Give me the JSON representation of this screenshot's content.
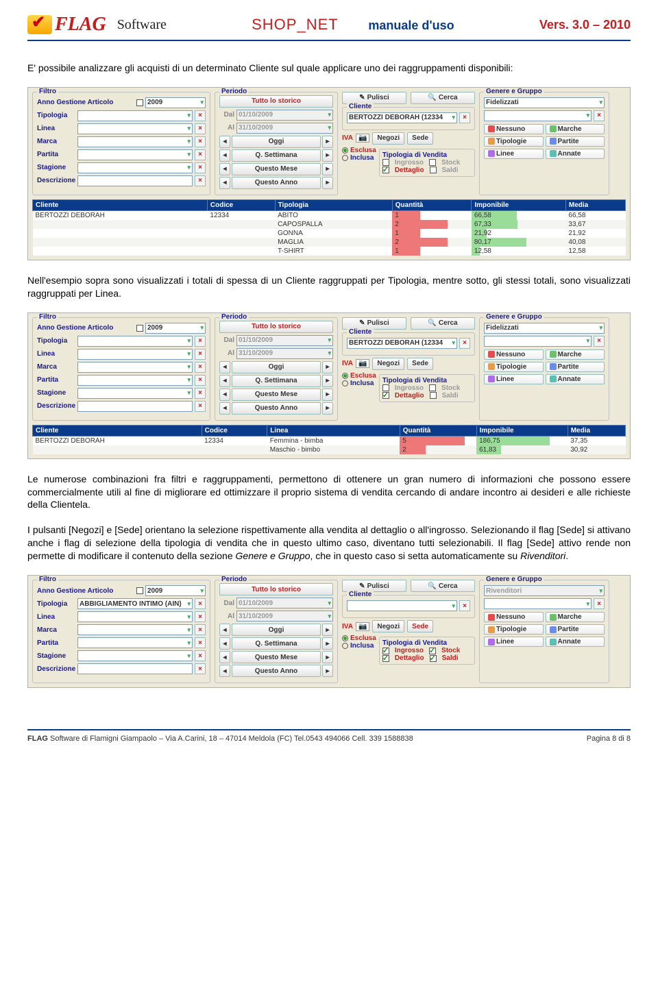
{
  "header": {
    "logo_text": "FLAG",
    "software": "Software",
    "shop_net": "SHOP_NET",
    "manual": "manuale d'uso",
    "version": "Vers. 3.0 – 2010"
  },
  "para1": "E' possibile analizzare gli acquisti di un determinato Cliente sul quale applicare uno dei raggruppamenti disponibili:",
  "para2": "Nell'esempio sopra sono visualizzati i totali di spessa di un Cliente raggruppati per Tipologia, mentre sotto, gli stessi totali,  sono visualizzati raggruppati per Linea.",
  "para3": "Le  numerose  combinazioni  fra  filtri  e  raggruppamenti,  permettono  di  ottenere  un  gran  numero  di informazioni  che  possono  essere  commercialmente  utili  al  fine  di  migliorare  ed  ottimizzare  il  proprio sistema di vendita cercando di andare incontro ai desideri e alle richieste della Clientela.",
  "para4a": "I pulsanti [Negozi] e [Sede] orientano la selezione rispettivamente alla vendita al dettaglio o all'ingrosso. Selezionando il flag [Sede] si attivano anche i flag di selezione della tipologia di vendita che in questo ultimo caso, diventano tutti selezionabili. Il flag [Sede] attivo rende non permette di modificare il contenuto della sezione ",
  "para4b": "Genere e Gruppo",
  "para4c": ", che in questo caso si setta automaticamente su ",
  "para4d": "Rivenditori",
  "para4e": ".",
  "filtro": {
    "title": "Filtro",
    "anno_label": "Anno Gestione Articolo",
    "anno_value": "2009",
    "labels": [
      "Tipologia",
      "Linea",
      "Marca",
      "Partita",
      "Stagione",
      "Descrizione"
    ]
  },
  "filtro_tipologia_val": "ABBIGLIAMENTO INTIMO  (AIN)",
  "periodo": {
    "title": "Periodo",
    "tutto": "Tutto lo storico",
    "dal": "Dal",
    "dal_v": "01/10/2009",
    "al": "Al",
    "al_v": "31/10/2009",
    "oggi": "Oggi",
    "sett": "Q. Settimana",
    "mese": "Questo Mese",
    "anno": "Questo Anno"
  },
  "cliente": {
    "title": "Cliente",
    "pulisci": "Pulisci",
    "cerca": "Cerca",
    "value": "BERTOZZI DEBORAH  (12334",
    "iva": "IVA",
    "negozi": "Negozi",
    "sede": "Sede",
    "esclusa": "Esclusa",
    "inclusa": "Inclusa",
    "tipvendita": "Tipologia di Vendita",
    "ingrosso": "Ingrosso",
    "stock": "Stock",
    "dettaglio": "Dettaglio",
    "saldi": "Saldi"
  },
  "gruppo": {
    "title": "Genere e Gruppo",
    "fidelizzati": "Fidelizzati",
    "rivenditori": "Rivenditori",
    "nessuno": "Nessuno",
    "marche": "Marche",
    "tipologie": "Tipologie",
    "partite": "Partite",
    "linee": "Linee",
    "annate": "Annate"
  },
  "table1": {
    "cols": [
      "Cliente",
      "Codice",
      "Tipologia",
      "Quantità",
      "Imponibile",
      "Media"
    ],
    "client": "BERTOZZI DEBORAH",
    "codice": "12334",
    "rows": [
      {
        "tip": "ABITO",
        "q": "1",
        "q_w": 35,
        "q_c": "red",
        "imp": "66,58",
        "imp_w": 48,
        "imp_c": "green",
        "med": "66,58"
      },
      {
        "tip": "CAPOSPALLA",
        "q": "2",
        "q_w": 70,
        "q_c": "red",
        "imp": "67,33",
        "imp_w": 49,
        "imp_c": "green",
        "med": "33,67"
      },
      {
        "tip": "GONNA",
        "q": "1",
        "q_w": 35,
        "q_c": "red",
        "imp": "21,92",
        "imp_w": 16,
        "imp_c": "green",
        "med": "21,92"
      },
      {
        "tip": "MAGLIA",
        "q": "2",
        "q_w": 70,
        "q_c": "red",
        "imp": "80,17",
        "imp_w": 58,
        "imp_c": "green",
        "med": "40,08"
      },
      {
        "tip": "T-SHIRT",
        "q": "1",
        "q_w": 35,
        "q_c": "red",
        "imp": "12,58",
        "imp_w": 9,
        "imp_c": "green",
        "med": "12,58"
      }
    ]
  },
  "table2": {
    "cols": [
      "Cliente",
      "Codice",
      "Linea",
      "Quantità",
      "Imponibile",
      "Media"
    ],
    "client": "BERTOZZI DEBORAH",
    "codice": "12334",
    "rows": [
      {
        "tip": "Femmina - bimba",
        "q": "5",
        "q_w": 85,
        "q_c": "red",
        "imp": "186,75",
        "imp_w": 80,
        "imp_c": "green",
        "med": "37,35"
      },
      {
        "tip": "Maschio - bimbo",
        "q": "2",
        "q_w": 34,
        "q_c": "red",
        "imp": "61,83",
        "imp_w": 27,
        "imp_c": "green",
        "med": "30,92"
      }
    ]
  },
  "footer": {
    "left_a": "FLAG",
    "left_b": " Software di Flamigni Giampaolo – Via A.Carini, 18 – 47014  Meldola (FC)  Tel.0543 494066  Cell. 339 1588838",
    "right": "Pagina 8 di 8"
  }
}
